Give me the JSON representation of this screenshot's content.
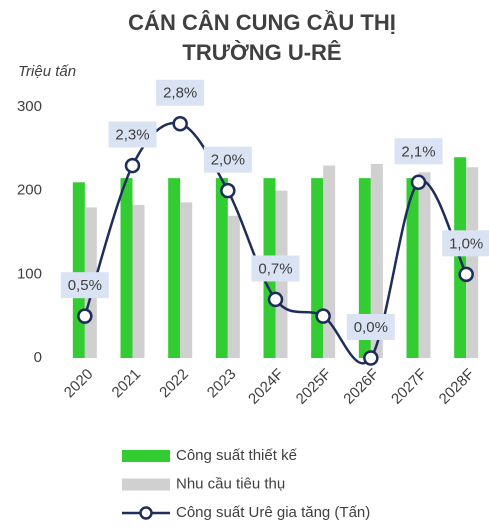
{
  "chart_data": {
    "type": "bar",
    "title": [
      "CÁN CÂN CUNG CẦU THỊ",
      "TRƯỜNG U-RÊ"
    ],
    "y_label": "Triệu tấn",
    "categories": [
      "2020",
      "2021",
      "2022",
      "2023",
      "2024F",
      "2025F",
      "2026F",
      "2027F",
      "2028F"
    ],
    "ylim": [
      0,
      300
    ],
    "yticks": [
      0,
      100,
      200,
      300
    ],
    "y2lim": [
      0,
      3
    ],
    "series": [
      {
        "name": "Công suất thiết kế",
        "type": "bar",
        "color": "#33cc33",
        "values": [
          210,
          215,
          215,
          215,
          215,
          215,
          215,
          215,
          240
        ]
      },
      {
        "name": "Nhu cầu tiêu thụ",
        "type": "bar",
        "color": "#d0d0d0",
        "values": [
          180,
          183,
          186,
          170,
          200,
          230,
          232,
          222,
          228
        ]
      },
      {
        "name": "Công suất Urê gia tăng (Tấn)",
        "type": "line",
        "axis": "y2",
        "color": "#1f2d5c",
        "values": [
          0.5,
          2.3,
          2.8,
          2.0,
          0.7,
          0.5,
          0.0,
          2.1,
          1.0
        ],
        "value_labels": [
          "0,5%",
          "2,3%",
          "2,8%",
          "2,0%",
          "0,7%",
          null,
          "0,0%",
          "2,1%",
          "1,0%"
        ]
      }
    ]
  }
}
